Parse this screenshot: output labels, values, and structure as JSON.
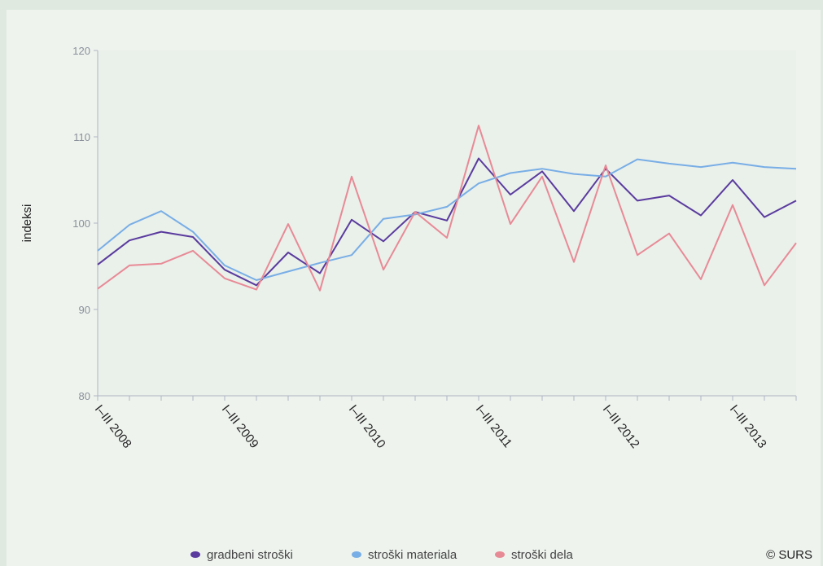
{
  "chart_data": {
    "type": "line",
    "ylabel": "indeksi",
    "ylim": [
      80,
      120
    ],
    "yticks": [
      80,
      90,
      100,
      110,
      120
    ],
    "x_tick_labels": [
      {
        "index": 0,
        "label": "I–III 2008"
      },
      {
        "index": 4,
        "label": "I–III 2009"
      },
      {
        "index": 8,
        "label": "I–III 2010"
      },
      {
        "index": 12,
        "label": "I–III 2011"
      },
      {
        "index": 16,
        "label": "I–III 2012"
      },
      {
        "index": 20,
        "label": "I–III 2013"
      }
    ],
    "num_periods": 23,
    "grid": false,
    "legend_position": "bottom",
    "series": [
      {
        "name": "gradbeni stroški",
        "color": "#5a3b9e",
        "values": [
          95.2,
          98.0,
          99.0,
          98.4,
          94.6,
          92.8,
          96.6,
          94.2,
          100.4,
          97.9,
          101.3,
          100.3,
          107.5,
          103.3,
          106.0,
          101.4,
          106.3,
          102.6,
          103.2,
          100.9,
          105.0,
          100.7,
          102.6
        ]
      },
      {
        "name": "stroški materiala",
        "color": "#78aee6",
        "values": [
          96.8,
          99.8,
          101.4,
          99.0,
          95.1,
          93.4,
          94.4,
          95.4,
          96.3,
          100.5,
          101.0,
          101.9,
          104.6,
          105.8,
          106.3,
          105.7,
          105.4,
          107.4,
          106.9,
          106.5,
          107.0,
          106.5,
          106.3
        ]
      },
      {
        "name": "stroški dela",
        "color": "#e88a96",
        "values": [
          92.4,
          95.1,
          95.3,
          96.8,
          93.6,
          92.3,
          99.9,
          92.2,
          105.4,
          94.6,
          101.3,
          98.3,
          111.3,
          99.9,
          105.4,
          95.5,
          106.7,
          96.3,
          98.8,
          93.5,
          102.1,
          92.8,
          97.7
        ]
      }
    ]
  },
  "copyright": "© SURS"
}
